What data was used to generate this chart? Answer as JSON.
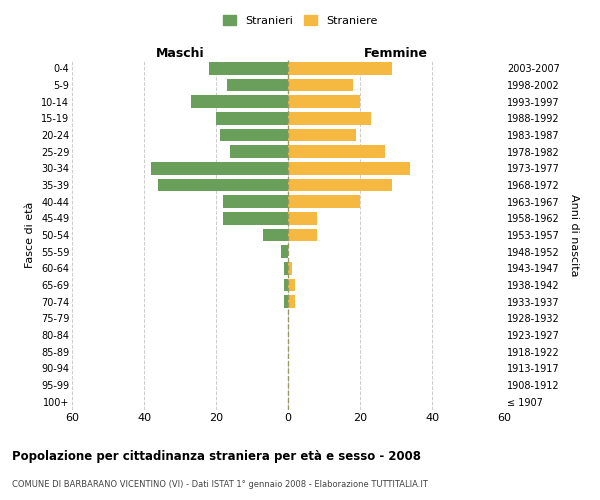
{
  "age_groups": [
    "100+",
    "95-99",
    "90-94",
    "85-89",
    "80-84",
    "75-79",
    "70-74",
    "65-69",
    "60-64",
    "55-59",
    "50-54",
    "45-49",
    "40-44",
    "35-39",
    "30-34",
    "25-29",
    "20-24",
    "15-19",
    "10-14",
    "5-9",
    "0-4"
  ],
  "birth_years": [
    "≤ 1907",
    "1908-1912",
    "1913-1917",
    "1918-1922",
    "1923-1927",
    "1928-1932",
    "1933-1937",
    "1938-1942",
    "1943-1947",
    "1948-1952",
    "1953-1957",
    "1958-1962",
    "1963-1967",
    "1968-1972",
    "1973-1977",
    "1978-1982",
    "1983-1987",
    "1988-1992",
    "1993-1997",
    "1998-2002",
    "2003-2007"
  ],
  "maschi": [
    0,
    0,
    0,
    0,
    0,
    0,
    1,
    1,
    1,
    2,
    7,
    18,
    18,
    36,
    38,
    16,
    19,
    20,
    27,
    17,
    22
  ],
  "femmine": [
    0,
    0,
    0,
    0,
    0,
    0,
    2,
    2,
    1,
    0,
    8,
    8,
    20,
    29,
    34,
    27,
    19,
    23,
    20,
    18,
    29
  ],
  "male_color": "#6a9e5b",
  "female_color": "#f5b942",
  "background_color": "#ffffff",
  "grid_color": "#cccccc",
  "title": "Popolazione per cittadinanza straniera per età e sesso - 2008",
  "subtitle": "COMUNE DI BARBARANO VICENTINO (VI) - Dati ISTAT 1° gennaio 2008 - Elaborazione TUTTITALIA.IT",
  "ylabel_left": "Fasce di età",
  "ylabel_right": "Anni di nascita",
  "xlabel_left": "Maschi",
  "xlabel_right": "Femmine",
  "legend_male": "Stranieri",
  "legend_female": "Straniere",
  "xlim": 60
}
